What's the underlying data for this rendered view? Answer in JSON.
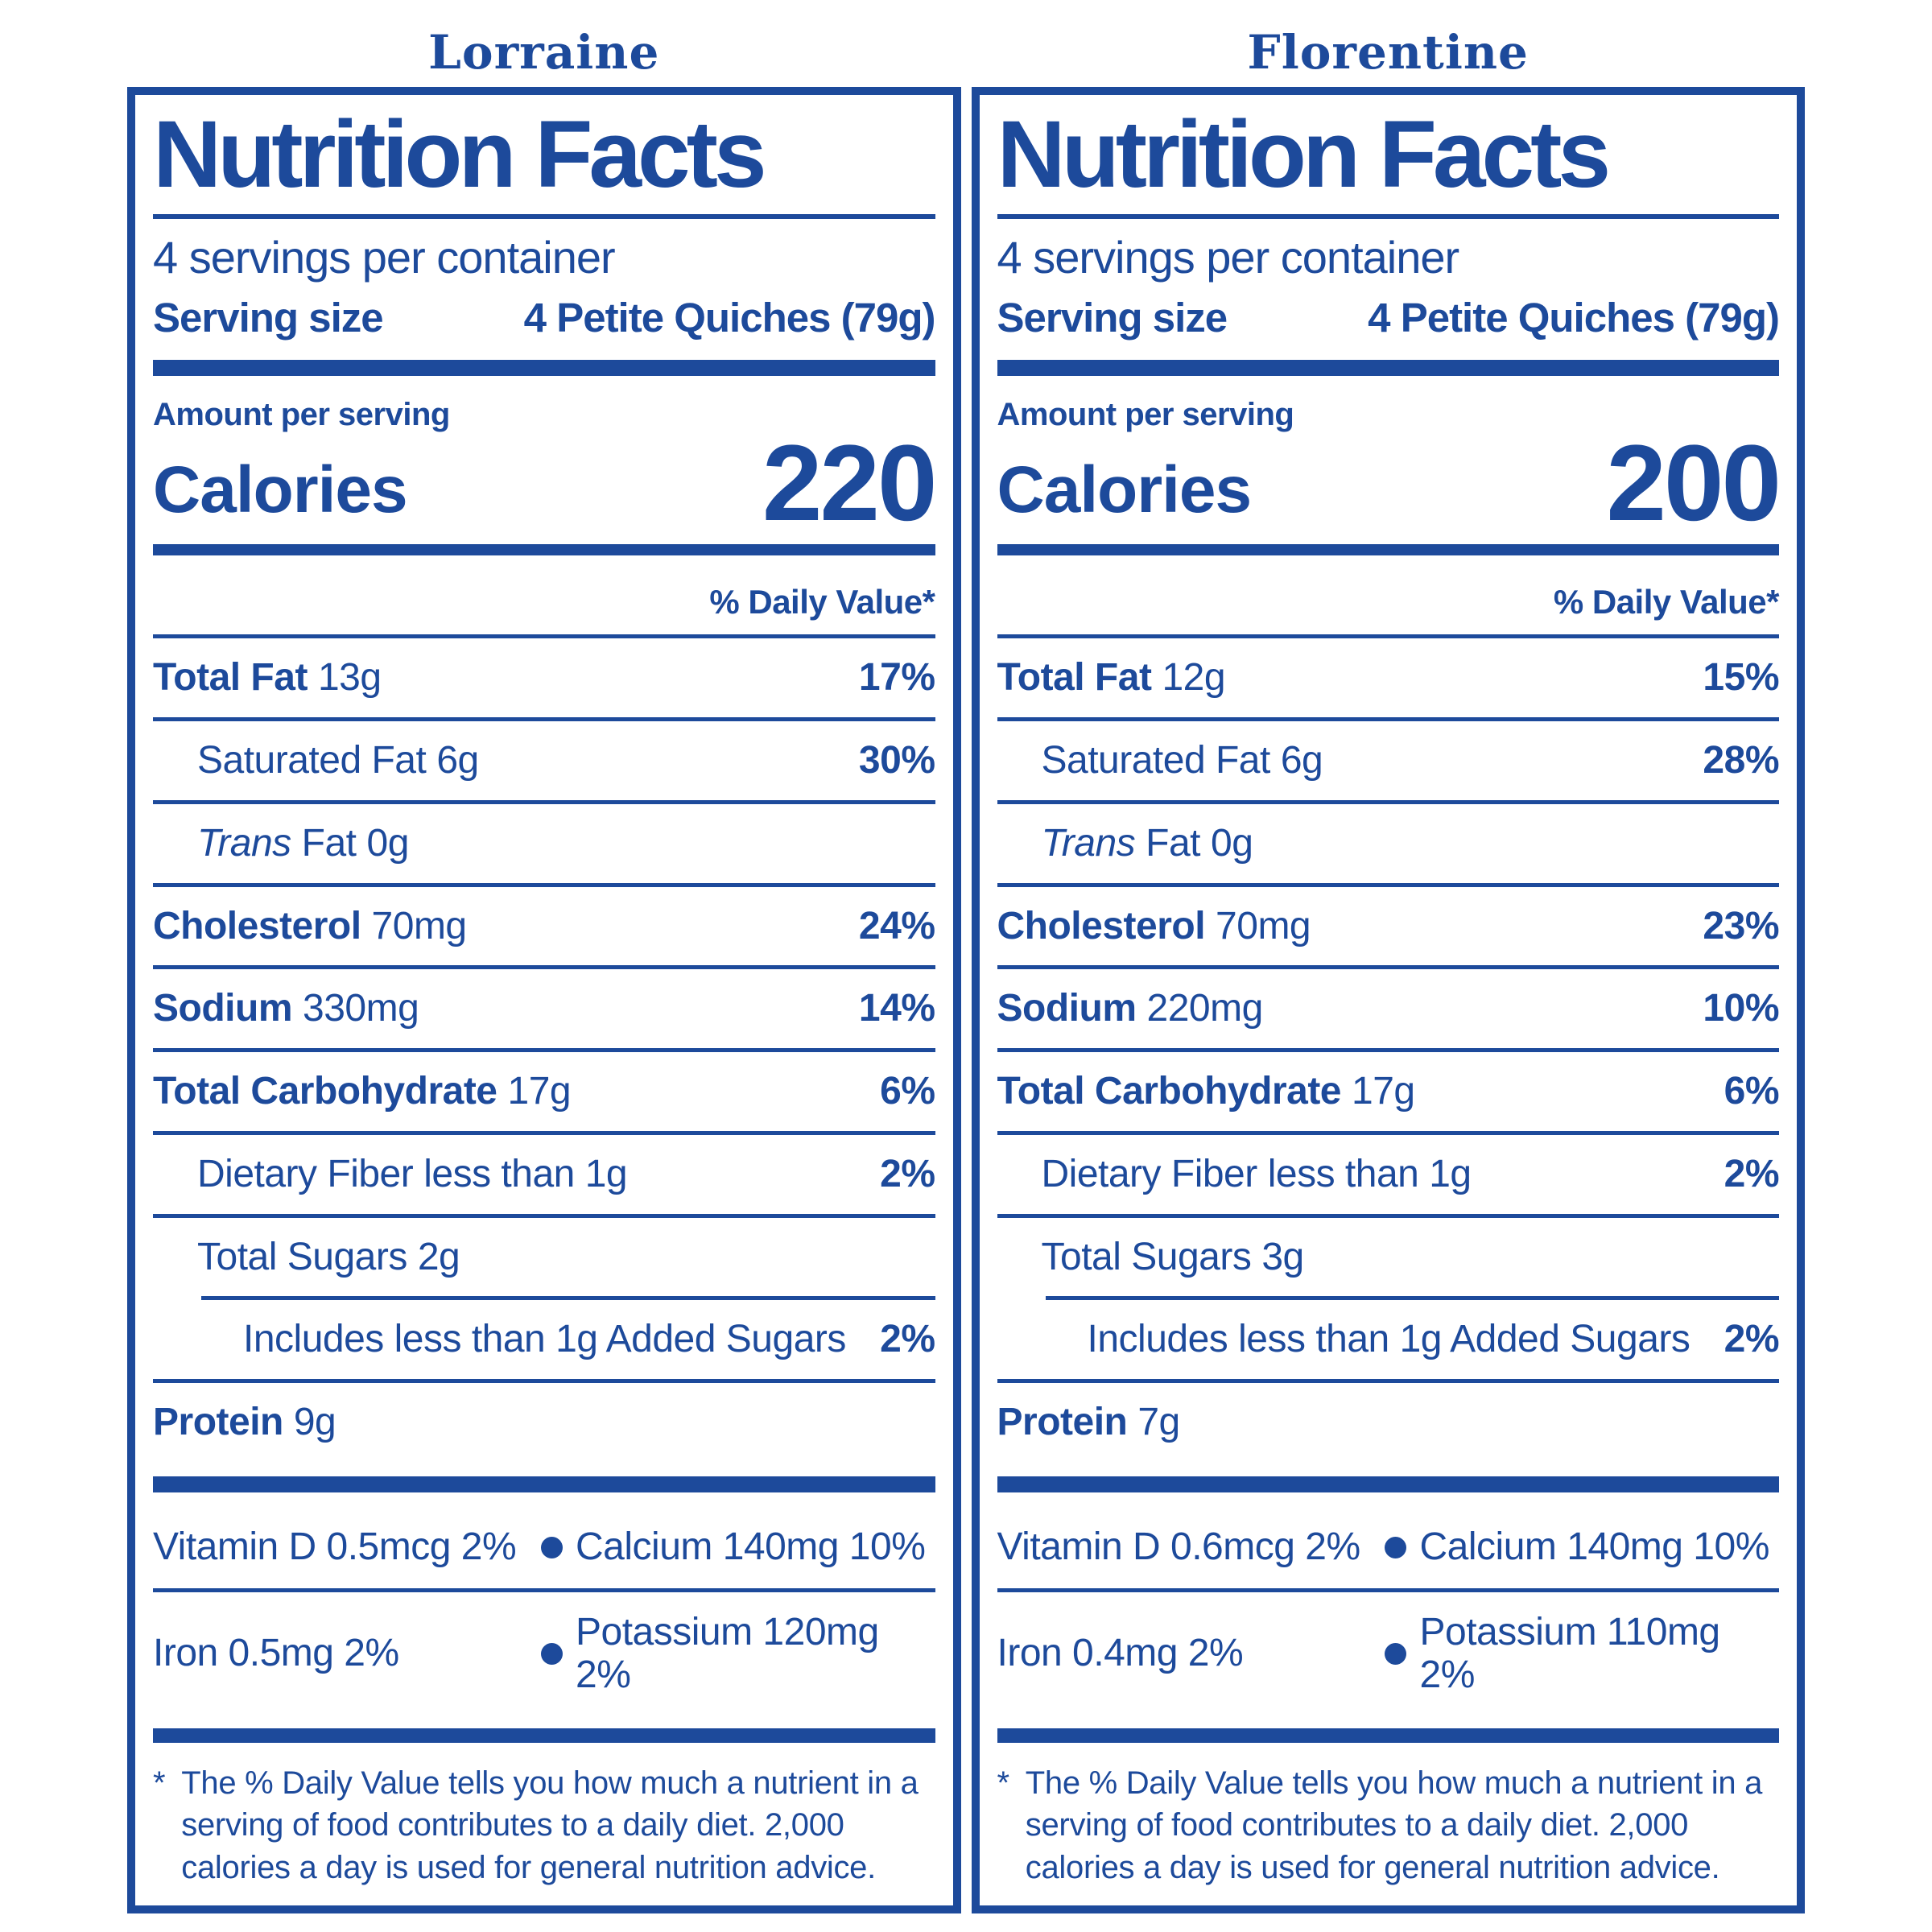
{
  "colors": {
    "blue": "#1d4a9b",
    "background": "#ffffff"
  },
  "labels": [
    {
      "variant": "Lorraine",
      "title": "Nutrition Facts",
      "servings_per_container": "4 servings per container",
      "serving_size_label": "Serving size",
      "serving_size_value": "4 Petite Quiches (79g)",
      "amount_per_serving": "Amount per serving",
      "calories_label": "Calories",
      "calories_value": "220",
      "daily_value_header": "% Daily Value*",
      "rows": [
        {
          "n": "Total Fat",
          "a": "13g",
          "dv": "17%"
        },
        {
          "n": "Saturated Fat",
          "a": "6g",
          "dv": "30%"
        },
        {
          "it": "Trans",
          "n": "Fat",
          "a": "0g",
          "dv": ""
        },
        {
          "n": "Cholesterol",
          "a": "70mg",
          "dv": "24%"
        },
        {
          "n": "Sodium",
          "a": "330mg",
          "dv": "14%"
        },
        {
          "n": "Total Carbohydrate",
          "a": "17g",
          "dv": "6%"
        },
        {
          "n": "Dietary Fiber",
          "a": "less than 1g",
          "dv": "2%"
        },
        {
          "n": "Total Sugars",
          "a": "2g",
          "dv": ""
        },
        {
          "n": "Includes less than 1g Added Sugars",
          "a": "",
          "dv": "2%"
        },
        {
          "n": "Protein",
          "a": "9g",
          "dv": ""
        }
      ],
      "micros": [
        {
          "left": "Vitamin D 0.5mcg 2%",
          "right": "Calcium 140mg 10%"
        },
        {
          "left": "Iron 0.5mg 2%",
          "right": "Potassium 120mg 2%"
        }
      ],
      "footnote_star": "*",
      "footnote_text": "The % Daily Value tells you how much a nutrient in a serving of food contributes to a daily diet. 2,000 calories a day is used for general nutrition advice."
    },
    {
      "variant": "Florentine",
      "title": "Nutrition Facts",
      "servings_per_container": "4 servings per container",
      "serving_size_label": "Serving size",
      "serving_size_value": "4 Petite Quiches (79g)",
      "amount_per_serving": "Amount per serving",
      "calories_label": "Calories",
      "calories_value": "200",
      "daily_value_header": "% Daily Value*",
      "rows": [
        {
          "n": "Total Fat",
          "a": "12g",
          "dv": "15%"
        },
        {
          "n": "Saturated Fat",
          "a": "6g",
          "dv": "28%"
        },
        {
          "it": "Trans",
          "n": "Fat",
          "a": "0g",
          "dv": ""
        },
        {
          "n": "Cholesterol",
          "a": "70mg",
          "dv": "23%"
        },
        {
          "n": "Sodium",
          "a": "220mg",
          "dv": "10%"
        },
        {
          "n": "Total Carbohydrate",
          "a": "17g",
          "dv": "6%"
        },
        {
          "n": "Dietary Fiber",
          "a": "less than 1g",
          "dv": "2%"
        },
        {
          "n": "Total Sugars",
          "a": "3g",
          "dv": ""
        },
        {
          "n": "Includes less than 1g Added Sugars",
          "a": "",
          "dv": "2%"
        },
        {
          "n": "Protein",
          "a": "7g",
          "dv": ""
        }
      ],
      "micros": [
        {
          "left": "Vitamin D 0.6mcg 2%",
          "right": "Calcium 140mg 10%"
        },
        {
          "left": "Iron 0.4mg 2%",
          "right": "Potassium 110mg 2%"
        }
      ],
      "footnote_star": "*",
      "footnote_text": "The % Daily Value tells you how much a nutrient in a serving of food contributes to a daily diet. 2,000 calories a day is used for general nutrition advice."
    }
  ]
}
